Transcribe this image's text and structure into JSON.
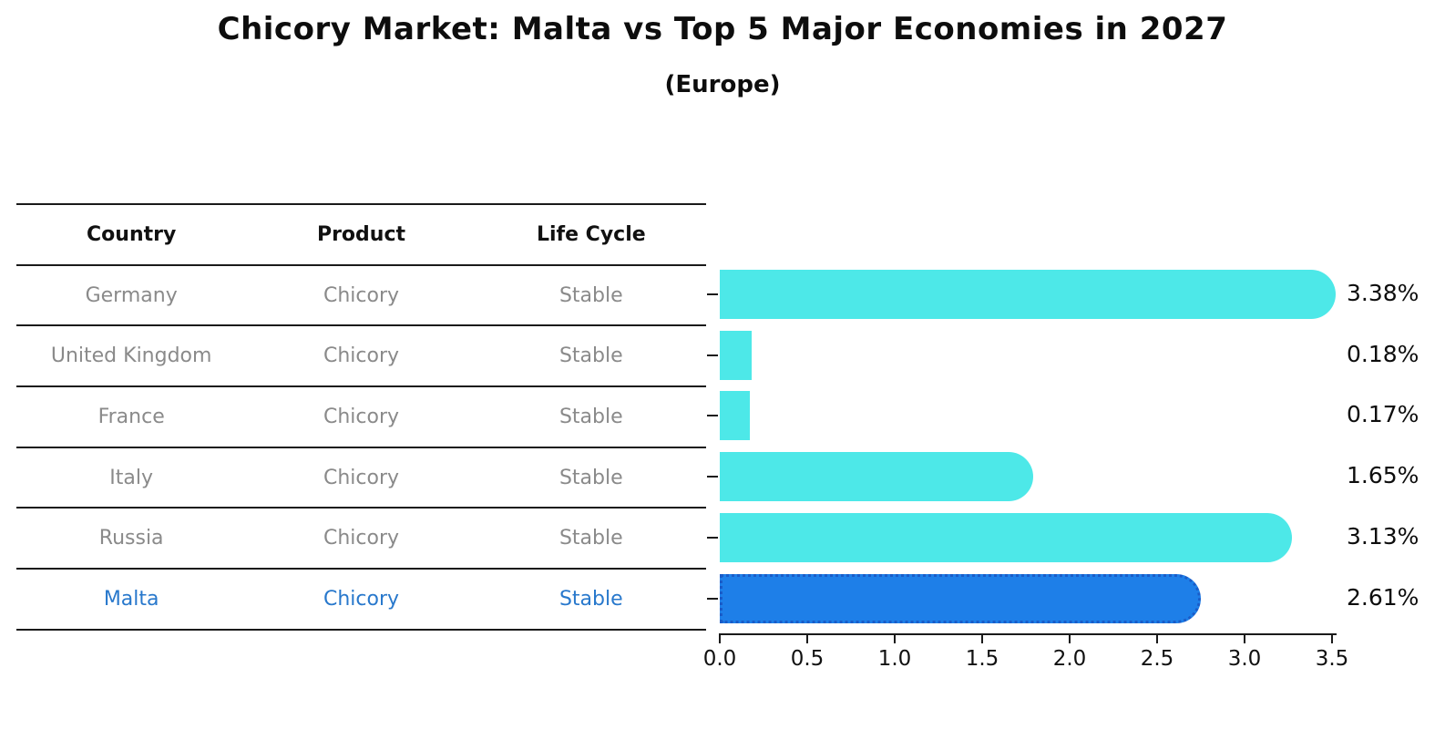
{
  "header": {
    "title": "Chicory Market: Malta vs Top 5 Major Economies in 2027",
    "subtitle": "(Europe)"
  },
  "table": {
    "headers": [
      "Country",
      "Product",
      "Life Cycle"
    ],
    "rows": [
      {
        "country": "Germany",
        "product": "Chicory",
        "life_cycle": "Stable",
        "highlighted": false
      },
      {
        "country": "United Kingdom",
        "product": "Chicory",
        "life_cycle": "Stable",
        "highlighted": false
      },
      {
        "country": "France",
        "product": "Chicory",
        "life_cycle": "Stable",
        "highlighted": false
      },
      {
        "country": "Italy",
        "product": "Chicory",
        "life_cycle": "Stable",
        "highlighted": false
      },
      {
        "country": "Russia",
        "product": "Chicory",
        "life_cycle": "Stable",
        "highlighted": false
      },
      {
        "country": "Malta",
        "product": "Chicory",
        "life_cycle": "Stable",
        "highlighted": true
      }
    ]
  },
  "chart_data": {
    "type": "bar",
    "orientation": "horizontal",
    "title": "Chicory Market: Malta vs Top 5 Major Economies in 2027",
    "subtitle": "(Europe)",
    "categories": [
      "Germany",
      "United Kingdom",
      "France",
      "Italy",
      "Russia",
      "Malta"
    ],
    "values": [
      3.38,
      0.18,
      0.17,
      1.65,
      3.13,
      2.61
    ],
    "data_labels": [
      "3.38%",
      "0.18%",
      "0.17%",
      "1.65%",
      "3.13%",
      "2.61%"
    ],
    "xlabel": "",
    "ylabel": "",
    "xlim": [
      0,
      3.5
    ],
    "xticks": [
      "0.0",
      "0.5",
      "1.0",
      "1.5",
      "2.0",
      "2.5",
      "3.0",
      "3.5"
    ],
    "grid": false,
    "legend": "none",
    "highlight_category": "Malta",
    "colors": {
      "bar": "#4DE8E8",
      "highlight_bar": "#1E7FE8",
      "highlight_border": "#1A5CC8",
      "highlight_text": "#2878CC",
      "row_text": "#8A8A8A",
      "header_text": "#111111",
      "axis": "#1A1A1A",
      "label_text": "#0D0D0D"
    }
  }
}
